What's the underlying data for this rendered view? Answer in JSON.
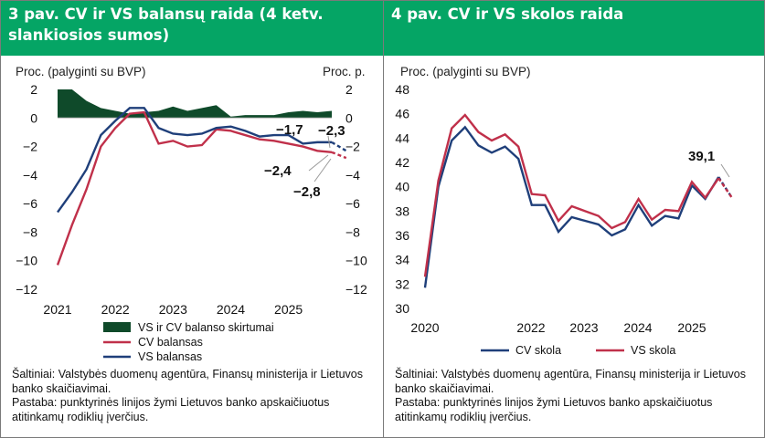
{
  "left": {
    "title": "3 pav. CV ir VS balansų raida (4 ketv. slankiosios sumos)",
    "y_left_label": "Proc. (palyginti su BVP)",
    "y_right_label": "Proc. p.",
    "legend": [
      "VS ir CV balanso skirtumai",
      "CV balansas",
      "VS balansas"
    ],
    "annotations": [
      "−1,7",
      "−2,3",
      "−2,4",
      "−2,8"
    ],
    "source": "Šaltiniai: Valstybės duomenų agentūra, Finansų ministerija ir Lietuvos banko skaičiavimai.",
    "note": "Pastaba: punktyrinės linijos žymi Lietuvos banko apskaičiuotus atitinkamų rodiklių įverčius."
  },
  "right": {
    "title": "4 pav. CV ir VS skolos raida",
    "y_label": "Proc. (palyginti su BVP)",
    "legend": [
      "CV skola",
      "VS skola"
    ],
    "annotations": [
      "39,1"
    ],
    "source": "Šaltiniai: Valstybės duomenų agentūra, Finansų ministerija ir Lietuvos banko skaičiavimai.",
    "note": "Pastaba: punktyrinės linijos žymi Lietuvos banko apskaičiuotus atitinkamų rodiklių įverčius."
  },
  "colors": {
    "header": "#05a565",
    "cv": "#c0304a",
    "vs": "#1f3f7a",
    "diff": "#0f4a2a"
  },
  "chart_data": [
    {
      "type": "line",
      "x": [
        "2021 Q1",
        "2021 Q2",
        "2021 Q3",
        "2021 Q4",
        "2022 Q1",
        "2022 Q2",
        "2022 Q3",
        "2022 Q4",
        "2023 Q1",
        "2023 Q2",
        "2023 Q3",
        "2023 Q4",
        "2024 Q1",
        "2024 Q2",
        "2024 Q3",
        "2024 Q4",
        "2025 Q1",
        "2025 Q2",
        "2025 Q3",
        "2025 Q4"
      ],
      "xticks": [
        "2021",
        "2022",
        "2023",
        "2024",
        "2025"
      ],
      "ylim": [
        -12,
        2
      ],
      "yticks": [
        2,
        0,
        -2,
        -4,
        -6,
        -8,
        -10,
        -12
      ],
      "y2lim": [
        -12,
        2
      ],
      "series": [
        {
          "name": "VS ir CV balanso skirtumai",
          "type": "area",
          "axis": "right",
          "values": [
            2.0,
            2.0,
            1.2,
            0.7,
            0.5,
            0.3,
            0.4,
            0.5,
            0.8,
            0.5,
            0.7,
            0.9,
            0.1,
            0.2,
            0.2,
            0.2,
            0.4,
            0.5,
            0.4,
            0.5
          ]
        },
        {
          "name": "CV balansas",
          "values": [
            -10.3,
            -7.5,
            -5.0,
            -2.0,
            -0.7,
            0.3,
            0.4,
            -1.8,
            -1.6,
            -2.0,
            -1.9,
            -0.8,
            -0.9,
            -1.2,
            -1.5,
            -1.6,
            -1.8,
            -2.0,
            -2.3,
            -2.4
          ],
          "estimate": [
            -2.4,
            -2.8
          ]
        },
        {
          "name": "VS balansas",
          "values": [
            -6.6,
            -5.2,
            -3.6,
            -1.2,
            -0.2,
            0.7,
            0.7,
            -0.7,
            -1.1,
            -1.2,
            -1.1,
            -0.7,
            -0.6,
            -0.9,
            -1.3,
            -1.2,
            -1.2,
            -1.8,
            -1.7,
            -1.7
          ],
          "estimate": [
            -1.7,
            -2.3
          ]
        }
      ]
    },
    {
      "type": "line",
      "x": [
        "2020 Q1",
        "2020 Q2",
        "2020 Q3",
        "2020 Q4",
        "2021 Q1",
        "2021 Q2",
        "2021 Q3",
        "2021 Q4",
        "2022 Q1",
        "2022 Q2",
        "2022 Q3",
        "2022 Q4",
        "2023 Q1",
        "2023 Q2",
        "2023 Q3",
        "2023 Q4",
        "2024 Q1",
        "2024 Q2",
        "2024 Q3",
        "2024 Q4",
        "2025 Q1",
        "2025 Q2",
        "2025 Q3"
      ],
      "xticks": [
        "2020",
        "2022",
        "2023",
        "2024",
        "2025"
      ],
      "ylim": [
        30,
        48
      ],
      "yticks": [
        48,
        46,
        44,
        42,
        40,
        38,
        36,
        34,
        32,
        30
      ],
      "series": [
        {
          "name": "CV skola",
          "values": [
            31.7,
            40.0,
            43.8,
            44.9,
            43.4,
            42.8,
            43.3,
            42.3,
            38.5,
            38.5,
            36.3,
            37.5,
            37.2,
            36.9,
            36.0,
            36.5,
            38.5,
            36.8,
            37.6,
            37.4,
            40.1,
            39.0,
            40.8
          ],
          "estimate": [
            40.8,
            39.1
          ]
        },
        {
          "name": "VS skola",
          "values": [
            32.6,
            40.5,
            44.8,
            45.9,
            44.5,
            43.8,
            44.3,
            43.3,
            39.4,
            39.3,
            37.2,
            38.4,
            38.0,
            37.6,
            36.6,
            37.1,
            39.0,
            37.3,
            38.1,
            38.0,
            40.4,
            39.1,
            40.7
          ],
          "estimate": [
            40.7,
            39.1
          ]
        }
      ]
    }
  ]
}
